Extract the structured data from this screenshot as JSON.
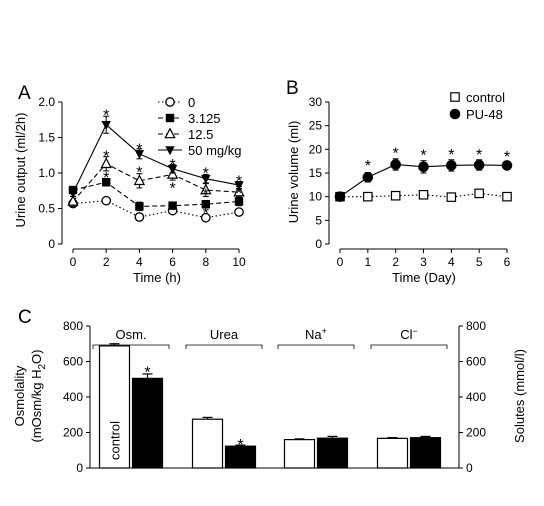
{
  "chart_data": [
    {
      "panel": "A",
      "type": "line",
      "xlabel": "Time (h)",
      "ylabel": "Urine output (ml/2h)",
      "xlim": [
        0,
        10
      ],
      "ylim": [
        0,
        2.0
      ],
      "x_ticks": [
        0,
        2,
        4,
        6,
        8,
        10
      ],
      "y_ticks": [
        "0",
        "0.5",
        "1.0",
        "1.5",
        "2.0"
      ],
      "legend_unit": "mg/kg",
      "legend_placement": "top-right",
      "series": [
        {
          "name": "0",
          "marker": "circle-open",
          "line": "dotted",
          "x": [
            0,
            2,
            4,
            6,
            8,
            10
          ],
          "y": [
            0.57,
            0.61,
            0.38,
            0.47,
            0.37,
            0.45
          ],
          "err": [
            0.04,
            0.03,
            0.04,
            0.03,
            0.04,
            0.04
          ]
        },
        {
          "name": "3.125",
          "marker": "square-filled",
          "line": "dashed",
          "x": [
            0,
            2,
            4,
            6,
            8,
            10
          ],
          "y": [
            0.76,
            0.87,
            0.53,
            0.54,
            0.56,
            0.6
          ],
          "err": [
            0.04,
            0.05,
            0.06,
            0.04,
            0.05,
            0.06
          ]
        },
        {
          "name": "12.5",
          "marker": "triangle-open",
          "line": "dashed",
          "x": [
            0,
            2,
            4,
            6,
            8,
            10
          ],
          "y": [
            0.6,
            1.13,
            0.89,
            0.98,
            0.76,
            0.73
          ],
          "err": [
            0.07,
            0.1,
            0.1,
            0.08,
            0.09,
            0.08
          ]
        },
        {
          "name": "50",
          "marker": "triangle-down-filled",
          "line": "solid",
          "x": [
            0,
            2,
            4,
            6,
            8,
            10
          ],
          "y": [
            0.72,
            1.68,
            1.27,
            1.06,
            0.92,
            0.83
          ],
          "err": [
            0.05,
            0.12,
            0.07,
            0.06,
            0.06,
            0.05
          ]
        }
      ],
      "annotations": [
        {
          "text": "*",
          "x": 2,
          "y": 1.88
        },
        {
          "text": "*",
          "x": 2,
          "y": 1.3
        },
        {
          "text": "*",
          "x": 2,
          "y": 1.0
        },
        {
          "text": "*",
          "x": 4,
          "y": 1.4
        },
        {
          "text": "*",
          "x": 4,
          "y": 1.08
        },
        {
          "text": "*",
          "x": 6,
          "y": 1.18
        },
        {
          "text": "*",
          "x": 6,
          "y": 0.85
        },
        {
          "text": "*",
          "x": 8,
          "y": 1.06
        },
        {
          "text": "*",
          "x": 8,
          "y": 0.77
        },
        {
          "text": "*",
          "x": 8,
          "y": 0.5
        },
        {
          "text": "*",
          "x": 10,
          "y": 0.95
        },
        {
          "text": "*",
          "x": 10,
          "y": 0.78
        }
      ]
    },
    {
      "panel": "B",
      "type": "line",
      "xlabel": "Time (Day)",
      "ylabel": "Urine volume (ml)",
      "xlim": [
        0,
        6
      ],
      "ylim": [
        0,
        30
      ],
      "x_ticks": [
        0,
        1,
        2,
        3,
        4,
        5,
        6
      ],
      "y_ticks": [
        0,
        5,
        10,
        15,
        20,
        25,
        30
      ],
      "legend_placement": "top-right",
      "series": [
        {
          "name": "control",
          "marker": "square-open",
          "line": "dotted",
          "x": [
            0,
            1,
            2,
            3,
            4,
            5,
            6
          ],
          "y": [
            10.0,
            10.0,
            10.2,
            10.4,
            9.9,
            10.7,
            10.0
          ],
          "err": [
            0.3,
            0.3,
            0.3,
            0.3,
            0.3,
            0.4,
            0.3
          ]
        },
        {
          "name": "PU-48",
          "marker": "circle-filled",
          "line": "solid",
          "x": [
            0,
            1,
            2,
            3,
            4,
            5,
            6
          ],
          "y": [
            10.0,
            14.1,
            16.8,
            16.3,
            16.6,
            16.7,
            16.6
          ],
          "err": [
            0.3,
            1.0,
            1.2,
            1.3,
            1.2,
            1.1,
            0.8
          ]
        }
      ],
      "annotations": [
        {
          "text": "*",
          "x": 1,
          "y": 17.5
        },
        {
          "text": "*",
          "x": 2,
          "y": 20.2
        },
        {
          "text": "*",
          "x": 3,
          "y": 19.8
        },
        {
          "text": "*",
          "x": 4,
          "y": 19.9
        },
        {
          "text": "*",
          "x": 5,
          "y": 19.9
        },
        {
          "text": "*",
          "x": 6,
          "y": 19.4
        }
      ]
    },
    {
      "panel": "C",
      "type": "bar",
      "categories": [
        "Osm.",
        "Urea",
        "Na",
        "Cl"
      ],
      "category_superscripts": [
        "",
        "",
        "+",
        "−"
      ],
      "ylabel_left": [
        "Osmolality",
        "(mOsm/kg H2O)"
      ],
      "ylabel_right": "Solutes (mmol/l)",
      "ylim": [
        0,
        800
      ],
      "y_ticks": [
        0,
        200,
        400,
        600,
        800
      ],
      "series": [
        {
          "name": "control",
          "color": "#ffffff",
          "values": [
            688,
            275,
            160,
            167
          ],
          "err": [
            12,
            10,
            4,
            4
          ]
        },
        {
          "name": "PU-48",
          "color": "#000000",
          "values": [
            505,
            123,
            168,
            171
          ],
          "err": [
            25,
            6,
            10,
            7
          ]
        }
      ],
      "annotations": [
        {
          "text": "*",
          "category": "Osm.",
          "value": 565
        },
        {
          "text": "*",
          "category": "Urea",
          "value": 158
        }
      ]
    }
  ]
}
